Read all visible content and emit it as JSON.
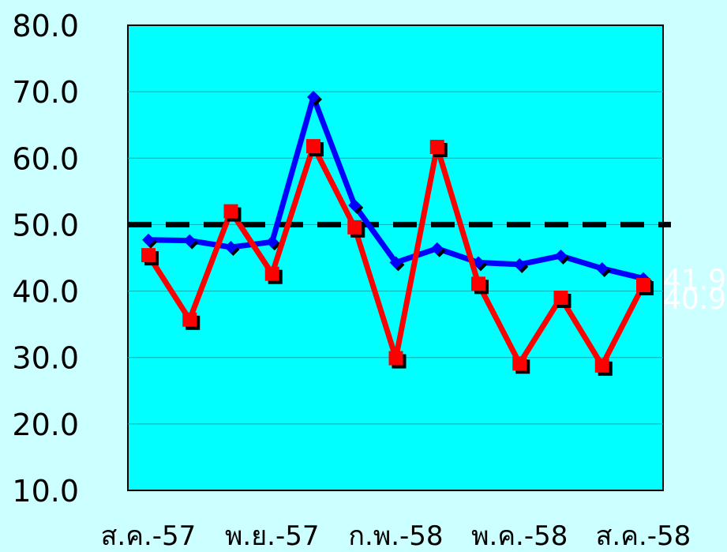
{
  "chart_data": {
    "type": "line",
    "title": "",
    "xlabel": "",
    "ylabel": "",
    "ylim": [
      10,
      80
    ],
    "yticks": [
      "10.0",
      "20.0",
      "30.0",
      "40.0",
      "50.0",
      "60.0",
      "70.0",
      "80.0"
    ],
    "x_tick_labels": [
      "ส.ค.-57",
      "พ.ย.-57",
      "ก.พ.-58",
      "พ.ค.-58",
      "ส.ค.-58"
    ],
    "x_tick_indices": [
      0,
      3,
      6,
      9,
      12
    ],
    "grid": true,
    "reference_line": {
      "value": 50,
      "style": "dashed",
      "color": "#000000"
    },
    "series": [
      {
        "color": "#0000ff",
        "marker": "diamond",
        "values": [
          47.7,
          47.6,
          46.6,
          47.4,
          69.2,
          52.9,
          44.3,
          46.4,
          44.3,
          44.0,
          45.3,
          43.4,
          41.9
        ],
        "end_label": "41.9"
      },
      {
        "color": "#ff0000",
        "marker": "square",
        "values": [
          45.4,
          35.7,
          52.0,
          42.6,
          61.8,
          49.6,
          29.9,
          61.7,
          41.1,
          29.1,
          39.0,
          28.8,
          40.9
        ],
        "end_label": "40.9"
      }
    ],
    "colors": {
      "background": "#ccffff",
      "plot_area": "#00ffff",
      "gridline": "#00b3b3"
    }
  }
}
